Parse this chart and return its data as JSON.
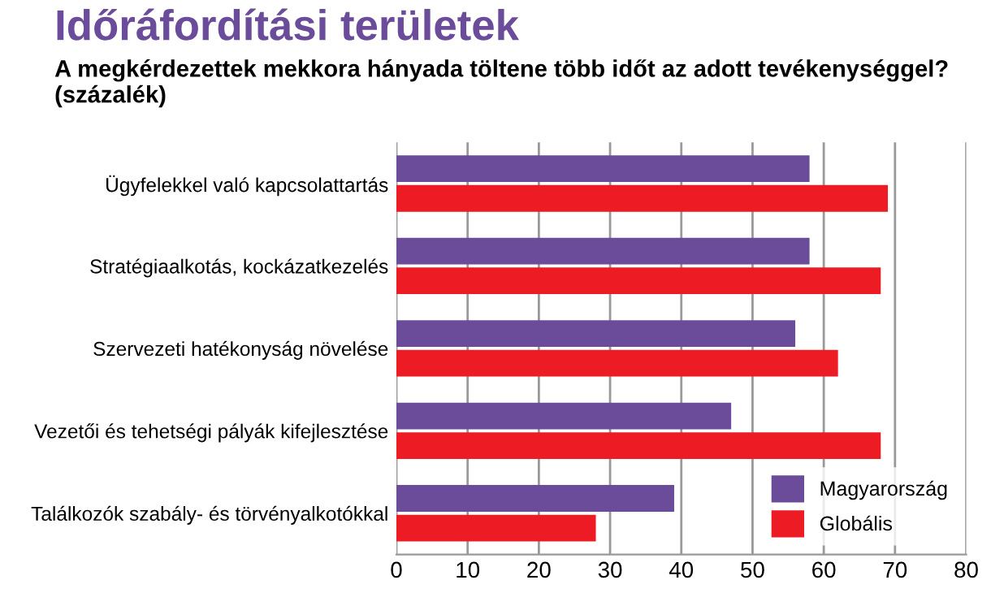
{
  "chart_data": {
    "type": "bar",
    "orientation": "horizontal",
    "title": "Időráfordítási területek",
    "subtitle": "A megkérdezettek mekkora hányada töltene több időt az adott tevékenységgel? (százalék)",
    "categories": [
      "Ügyfelekkel való kapcsolattartás",
      "Stratégiaalkotás, kockázatkezelés",
      "Szervezeti hatékonyság növelése",
      "Vezetői és tehetségi pályák kifejlesztése",
      "Találkozók szabály- és törvényalkotókkal"
    ],
    "series": [
      {
        "name": "Magyarország",
        "color": "#6b4c9a",
        "values": [
          58,
          58,
          56,
          47,
          39
        ]
      },
      {
        "name": "Globális",
        "color": "#ed1c24",
        "values": [
          69,
          68,
          62,
          68,
          28
        ]
      }
    ],
    "xlim": [
      0,
      80
    ],
    "xticks": [
      0,
      10,
      20,
      30,
      40,
      50,
      60,
      70,
      80
    ],
    "grid": "x",
    "legend": "bottom right"
  }
}
